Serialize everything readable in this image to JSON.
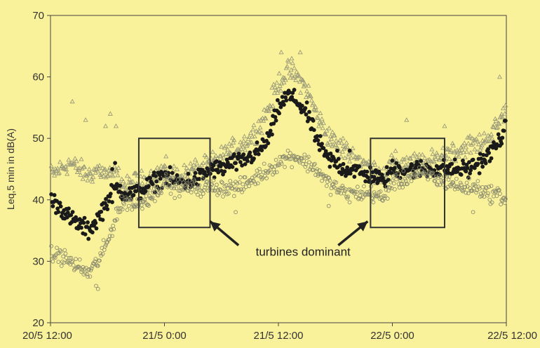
{
  "chart_data": {
    "type": "scatter",
    "title": "",
    "xlabel": "",
    "ylabel": "Leq,5 min  in dB(A)",
    "x_unit": "hours",
    "xlim": [
      0,
      48
    ],
    "ylim": [
      20,
      70
    ],
    "y_ticks": [
      20,
      30,
      40,
      50,
      60,
      70
    ],
    "x_ticks": [
      {
        "x": 0,
        "label": "20/5 12:00"
      },
      {
        "x": 12,
        "label": "21/5 0:00"
      },
      {
        "x": 24,
        "label": "21/5 12:00"
      },
      {
        "x": 36,
        "label": "22/5 0:00"
      },
      {
        "x": 48,
        "label": "22/5 12:00"
      }
    ],
    "grid": false,
    "legend": "none",
    "series": [
      {
        "marker": "triangle",
        "fill": "none",
        "color": "#9a9a7a",
        "trend": [
          [
            0,
            44
          ],
          [
            1,
            45
          ],
          [
            2,
            46
          ],
          [
            3,
            45
          ],
          [
            4,
            44
          ],
          [
            5,
            45
          ],
          [
            6,
            44
          ],
          [
            7,
            44
          ],
          [
            8,
            42
          ],
          [
            9,
            43
          ],
          [
            10,
            43
          ],
          [
            11,
            44
          ],
          [
            12,
            45
          ],
          [
            13,
            44
          ],
          [
            14,
            44
          ],
          [
            15,
            45
          ],
          [
            16,
            45
          ],
          [
            17,
            46
          ],
          [
            18,
            47
          ],
          [
            19,
            48
          ],
          [
            20,
            49
          ],
          [
            21,
            50
          ],
          [
            22,
            52
          ],
          [
            23,
            55
          ],
          [
            24,
            59
          ],
          [
            25,
            61
          ],
          [
            26,
            60
          ],
          [
            27,
            58
          ],
          [
            28,
            54
          ],
          [
            29,
            51
          ],
          [
            30,
            49
          ],
          [
            31,
            48
          ],
          [
            32,
            47
          ],
          [
            33,
            46
          ],
          [
            34,
            45
          ],
          [
            35,
            44
          ],
          [
            36,
            46
          ],
          [
            37,
            46
          ],
          [
            38,
            46
          ],
          [
            39,
            46
          ],
          [
            40,
            46
          ],
          [
            41,
            47
          ],
          [
            42,
            48
          ],
          [
            43,
            48
          ],
          [
            44,
            49
          ],
          [
            45,
            49
          ],
          [
            46,
            50
          ],
          [
            47,
            52
          ],
          [
            48,
            55
          ]
        ],
        "spread": 2.5,
        "spikes": [
          [
            2.3,
            56
          ],
          [
            3.7,
            53
          ],
          [
            5.8,
            52
          ],
          [
            6.3,
            54
          ],
          [
            6.9,
            52
          ],
          [
            24.3,
            64
          ],
          [
            25.4,
            63
          ],
          [
            26.3,
            64
          ],
          [
            29.7,
            51
          ],
          [
            30.8,
            50
          ],
          [
            37.5,
            53
          ],
          [
            41.5,
            52
          ],
          [
            47.3,
            60
          ]
        ]
      },
      {
        "marker": "dot",
        "fill": "solid",
        "color": "#1a1a1a",
        "trend": [
          [
            0,
            40
          ],
          [
            1,
            39
          ],
          [
            2,
            37
          ],
          [
            3,
            36
          ],
          [
            4,
            35
          ],
          [
            5,
            37
          ],
          [
            6,
            40
          ],
          [
            7,
            42
          ],
          [
            8,
            41
          ],
          [
            9,
            41
          ],
          [
            10,
            42
          ],
          [
            11,
            43
          ],
          [
            12,
            44
          ],
          [
            13,
            43
          ],
          [
            14,
            43
          ],
          [
            15,
            43
          ],
          [
            16,
            44
          ],
          [
            17,
            45
          ],
          [
            18,
            45
          ],
          [
            19,
            46
          ],
          [
            20,
            46
          ],
          [
            21,
            47
          ],
          [
            22,
            48
          ],
          [
            23,
            50
          ],
          [
            24,
            55
          ],
          [
            25,
            57
          ],
          [
            26,
            56
          ],
          [
            27,
            54
          ],
          [
            28,
            50
          ],
          [
            29,
            47
          ],
          [
            30,
            46
          ],
          [
            31,
            45
          ],
          [
            32,
            45
          ],
          [
            33,
            44
          ],
          [
            34,
            44
          ],
          [
            35,
            43
          ],
          [
            36,
            45
          ],
          [
            37,
            45
          ],
          [
            38,
            45
          ],
          [
            39,
            45
          ],
          [
            40,
            45
          ],
          [
            41,
            45
          ],
          [
            42,
            45
          ],
          [
            43,
            45
          ],
          [
            44,
            45
          ],
          [
            45,
            46
          ],
          [
            46,
            47
          ],
          [
            47,
            49
          ],
          [
            48,
            52
          ]
        ],
        "spread": 2.2,
        "spikes": [
          [
            6.5,
            45
          ],
          [
            6.8,
            46
          ],
          [
            30.2,
            48
          ],
          [
            31.5,
            48
          ],
          [
            34.5,
            43
          ]
        ]
      },
      {
        "marker": "circle",
        "fill": "none",
        "color": "#8a8a6e",
        "trend": [
          [
            0,
            31
          ],
          [
            1,
            31
          ],
          [
            2,
            30
          ],
          [
            3,
            29
          ],
          [
            4,
            28
          ],
          [
            5,
            30
          ],
          [
            6,
            33
          ],
          [
            7,
            38
          ],
          [
            8,
            40
          ],
          [
            9,
            39
          ],
          [
            10,
            40
          ],
          [
            11,
            41
          ],
          [
            12,
            43
          ],
          [
            13,
            42
          ],
          [
            14,
            42
          ],
          [
            15,
            42
          ],
          [
            16,
            42
          ],
          [
            17,
            42
          ],
          [
            18,
            42
          ],
          [
            19,
            42
          ],
          [
            20,
            42
          ],
          [
            21,
            43
          ],
          [
            22,
            44
          ],
          [
            23,
            45
          ],
          [
            24,
            46
          ],
          [
            25,
            47
          ],
          [
            26,
            47
          ],
          [
            27,
            46
          ],
          [
            28,
            45
          ],
          [
            29,
            43
          ],
          [
            30,
            42
          ],
          [
            31,
            41
          ],
          [
            32,
            41
          ],
          [
            33,
            41
          ],
          [
            34,
            41
          ],
          [
            35,
            40
          ],
          [
            36,
            43
          ],
          [
            37,
            43
          ],
          [
            38,
            44
          ],
          [
            39,
            44
          ],
          [
            40,
            44
          ],
          [
            41,
            43
          ],
          [
            42,
            43
          ],
          [
            43,
            42
          ],
          [
            44,
            42
          ],
          [
            45,
            42
          ],
          [
            46,
            41
          ],
          [
            47,
            41
          ],
          [
            48,
            40
          ]
        ],
        "spread": 2.0,
        "spikes": [
          [
            4.8,
            26
          ],
          [
            5.0,
            25.5
          ],
          [
            19.5,
            38
          ],
          [
            29.3,
            39
          ],
          [
            44.5,
            38
          ]
        ]
      }
    ],
    "boxes": [
      {
        "x0": 9.3,
        "x1": 16.8,
        "y0": 35.5,
        "y1": 50
      },
      {
        "x0": 33.7,
        "x1": 41.5,
        "y0": 35.5,
        "y1": 50
      }
    ],
    "annotation": {
      "text": "turbines dominant",
      "x": 26.6,
      "y": 30.9,
      "arrows": [
        {
          "from": [
            19.8,
            32.6
          ],
          "to": [
            16.8,
            36.5
          ]
        },
        {
          "from": [
            30.3,
            32.6
          ],
          "to": [
            33.4,
            36.5
          ]
        }
      ]
    }
  }
}
